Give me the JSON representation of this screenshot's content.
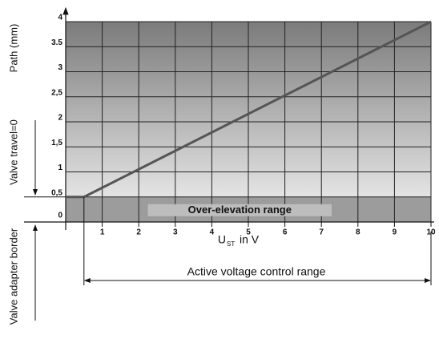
{
  "chart_data": {
    "type": "line",
    "y_label": "Path (mm)",
    "x_label": {
      "main": "U",
      "sub": "ST",
      "rest": "in V"
    },
    "annotations": {
      "band": "Over-elevation range",
      "travel": "Valve travel=0",
      "border": "Valve adapter border",
      "range": "Active voltage control range"
    },
    "series": [
      {
        "color": "#555555",
        "x": [
          0,
          0.5,
          10
        ],
        "values": [
          0.5,
          0.5,
          4
        ]
      }
    ],
    "xlim": [
      0,
      10
    ],
    "xticks": [
      1,
      2,
      3,
      4,
      5,
      6,
      7,
      8,
      9,
      10
    ],
    "ylim": [
      0,
      4
    ],
    "yticks": [
      0,
      {
        "value": 0.5,
        "label": "0,5"
      },
      1,
      {
        "value": 1.5,
        "label": "1,5"
      },
      2,
      {
        "value": 2.5,
        "label": "2,5"
      },
      3,
      {
        "value": 3.5,
        "label": "3.5"
      },
      4
    ],
    "grid": true
  }
}
